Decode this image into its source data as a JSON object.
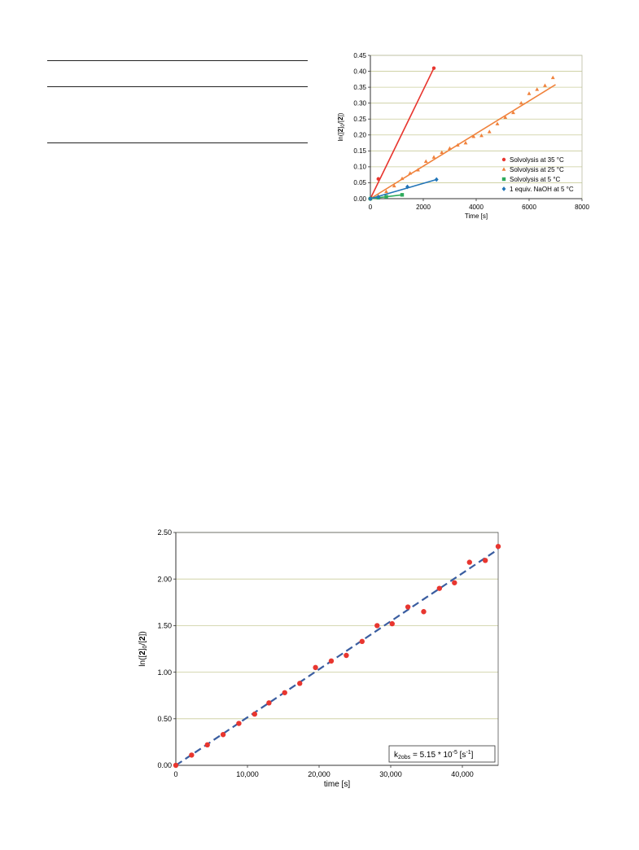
{
  "chart_data": [
    {
      "type": "scatter",
      "title": "",
      "xlabel": "Time [s]",
      "ylabel_parts": [
        "ln([",
        "2",
        "]",
        "0",
        "/[",
        "2",
        "])"
      ],
      "xlim": [
        0,
        8000
      ],
      "ylim": [
        0,
        0.45
      ],
      "x_ticks": [
        0,
        2000,
        4000,
        6000,
        8000
      ],
      "x_tick_labels": [
        "0",
        "2000",
        "4000",
        "6000",
        "8000"
      ],
      "y_ticks": [
        0,
        0.05,
        0.1,
        0.15,
        0.2,
        0.25,
        0.3,
        0.35,
        0.4,
        0.45
      ],
      "y_tick_labels": [
        "0.00",
        "0.05",
        "0.10",
        "0.15",
        "0.20",
        "0.25",
        "0.30",
        "0.35",
        "0.40",
        "0.45"
      ],
      "grid": "horizontal",
      "legend_position": "bottom-right",
      "series": [
        {
          "name": "Solvolysis at 35 °C",
          "color": "#e8362f",
          "marker": "circle",
          "points": [
            [
              0,
              0
            ],
            [
              300,
              0.062
            ],
            [
              2400,
              0.41
            ]
          ],
          "fit": [
            [
              0,
              0
            ],
            [
              2400,
              0.41
            ]
          ]
        },
        {
          "name": "Solvolysis at 25 °C",
          "color": "#f0823c",
          "marker": "triangle",
          "points": [
            [
              0,
              0
            ],
            [
              300,
              0.008
            ],
            [
              600,
              0.022
            ],
            [
              900,
              0.04
            ],
            [
              1200,
              0.063
            ],
            [
              1500,
              0.08
            ],
            [
              1800,
              0.09
            ],
            [
              2100,
              0.117
            ],
            [
              2400,
              0.13
            ],
            [
              2700,
              0.145
            ],
            [
              3000,
              0.158
            ],
            [
              3300,
              0.168
            ],
            [
              3600,
              0.175
            ],
            [
              3900,
              0.195
            ],
            [
              4200,
              0.198
            ],
            [
              4500,
              0.21
            ],
            [
              4800,
              0.235
            ],
            [
              5100,
              0.255
            ],
            [
              5400,
              0.27
            ],
            [
              5700,
              0.3
            ],
            [
              6000,
              0.33
            ],
            [
              6300,
              0.343
            ],
            [
              6600,
              0.355
            ],
            [
              6900,
              0.38
            ]
          ],
          "fit": [
            [
              0,
              0
            ],
            [
              7000,
              0.358
            ]
          ]
        },
        {
          "name": "Solvolysis at 5 °C",
          "color": "#2eaa5c",
          "marker": "square",
          "points": [
            [
              0,
              0
            ],
            [
              300,
              0.003
            ],
            [
              600,
              0.006
            ],
            [
              1200,
              0.012
            ]
          ],
          "fit": [
            [
              0,
              0
            ],
            [
              1200,
              0.012
            ]
          ]
        },
        {
          "name": "1 equiv. NaOH at 5 °C",
          "color": "#2275b8",
          "marker": "diamond",
          "points": [
            [
              0,
              0
            ],
            [
              300,
              0.005
            ],
            [
              1400,
              0.037
            ],
            [
              2500,
              0.06
            ]
          ],
          "fit": [
            [
              0,
              0
            ],
            [
              2500,
              0.06
            ]
          ]
        }
      ]
    },
    {
      "type": "scatter",
      "title": "",
      "xlabel": "time [s]",
      "ylabel_parts": [
        "ln([",
        "2",
        "]",
        "0",
        "/[",
        "2",
        "])"
      ],
      "xlim": [
        0,
        45000
      ],
      "ylim": [
        0,
        2.5
      ],
      "x_ticks": [
        0,
        10000,
        20000,
        30000,
        40000
      ],
      "x_tick_labels": [
        "0",
        "10,000",
        "20,000",
        "30,000",
        "40,000"
      ],
      "y_ticks": [
        0,
        0.5,
        1.0,
        1.5,
        2.0,
        2.5
      ],
      "y_tick_labels": [
        "0.00",
        "0.50",
        "1.00",
        "1.50",
        "2.00",
        "2.50"
      ],
      "grid": "horizontal",
      "annotation_parts": [
        "k",
        "2obs",
        " = 5.15 * 10",
        "-5",
        " [s",
        "-1",
        "]"
      ],
      "series": [
        {
          "name": "",
          "color": "#e8362f",
          "marker": "circle",
          "points": [
            [
              0,
              0
            ],
            [
              2200,
              0.11
            ],
            [
              4400,
              0.22
            ],
            [
              6600,
              0.33
            ],
            [
              8800,
              0.45
            ],
            [
              11000,
              0.55
            ],
            [
              13000,
              0.67
            ],
            [
              15200,
              0.78
            ],
            [
              17300,
              0.88
            ],
            [
              19500,
              1.05
            ],
            [
              21700,
              1.12
            ],
            [
              23800,
              1.18
            ],
            [
              26000,
              1.33
            ],
            [
              28100,
              1.5
            ],
            [
              30200,
              1.52
            ],
            [
              32400,
              1.7
            ],
            [
              34600,
              1.65
            ],
            [
              36800,
              1.9
            ],
            [
              38900,
              1.96
            ],
            [
              41000,
              2.18
            ],
            [
              43200,
              2.2
            ],
            [
              45000,
              2.35
            ]
          ]
        }
      ],
      "fit": {
        "color": "#3a5da0",
        "style": "dashed",
        "points": [
          [
            0,
            0
          ],
          [
            45000,
            2.32
          ]
        ]
      }
    }
  ]
}
